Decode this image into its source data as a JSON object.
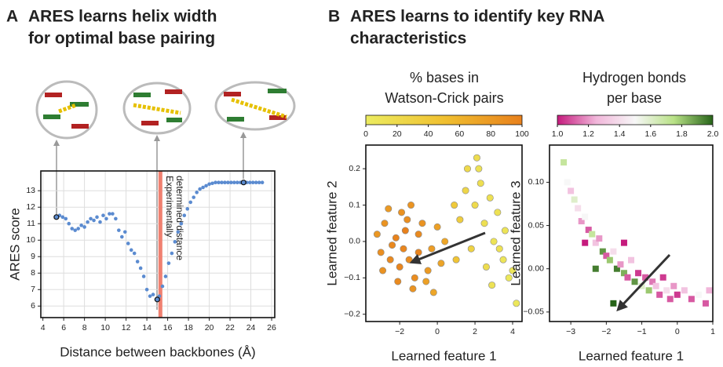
{
  "panels": [
    {
      "label": "A",
      "title_lines": [
        "ARES learns helix width",
        "for optimal base pairing"
      ]
    },
    {
      "label": "B",
      "title_lines": [
        "ARES learns to identify key RNA",
        "characteristics"
      ]
    }
  ],
  "chart_data": [
    {
      "type": "scatter",
      "color": "#5b8bd0",
      "grid": true,
      "ylabel": "ARES score",
      "xlabel": "Distance between backbones (Å)",
      "xlim": [
        3.8,
        26.3
      ],
      "ylim": [
        5.3,
        14.2
      ],
      "xticks": [
        4,
        6,
        8,
        10,
        12,
        14,
        16,
        18,
        20,
        22,
        24,
        26
      ],
      "yticks": [
        6,
        7,
        8,
        9,
        10,
        11,
        12,
        13
      ],
      "x": [
        5.3,
        5.6,
        5.9,
        6.2,
        6.5,
        6.8,
        7.1,
        7.4,
        7.7,
        8.0,
        8.3,
        8.6,
        8.9,
        9.2,
        9.5,
        9.8,
        10.1,
        10.4,
        10.7,
        11.0,
        11.3,
        11.6,
        11.9,
        12.2,
        12.5,
        12.8,
        13.1,
        13.4,
        13.7,
        14.0,
        14.3,
        14.6,
        14.9,
        15.2,
        15.5,
        15.8,
        16.1,
        16.4,
        16.7,
        17.0,
        17.3,
        17.6,
        17.9,
        18.2,
        18.5,
        18.8,
        19.1,
        19.4,
        19.7,
        20.0,
        20.3,
        20.6,
        20.9,
        21.2,
        21.5,
        21.8,
        22.1,
        22.4,
        22.7,
        23.0,
        23.3,
        23.6,
        23.9,
        24.2,
        24.5,
        24.8,
        25.1
      ],
      "y": [
        11.4,
        11.5,
        11.4,
        11.3,
        11.0,
        10.7,
        10.6,
        10.7,
        10.9,
        10.8,
        11.1,
        11.3,
        11.2,
        11.4,
        11.1,
        11.5,
        11.3,
        11.6,
        11.6,
        11.3,
        10.6,
        10.2,
        10.5,
        9.8,
        9.4,
        9.2,
        8.7,
        8.3,
        7.8,
        7.0,
        6.6,
        6.7,
        6.4,
        6.6,
        7.2,
        7.8,
        8.6,
        9.2,
        9.9,
        10.5,
        11.0,
        11.5,
        11.9,
        12.3,
        12.6,
        12.9,
        13.1,
        13.2,
        13.3,
        13.4,
        13.45,
        13.5,
        13.5,
        13.5,
        13.5,
        13.5,
        13.5,
        13.5,
        13.5,
        13.5,
        13.5,
        13.5,
        13.5,
        13.5,
        13.5,
        13.5,
        13.5
      ],
      "marked_points": {
        "x": [
          5.3,
          15.0,
          23.3
        ],
        "y": [
          11.4,
          6.4,
          13.5
        ]
      },
      "reference_x": 15.3,
      "reference_color": "#f08070",
      "reference_annotation": [
        "Experimentally",
        "determined distance"
      ]
    },
    {
      "type": "scatter",
      "marker": "circle",
      "title_lines": [
        "% bases in",
        "Watson-Crick pairs"
      ],
      "xlabel": "Learned feature 1",
      "ylabel": "Learned feature 2",
      "xlim": [
        -3.8,
        4.5
      ],
      "ylim": [
        -0.22,
        0.265
      ],
      "xticks": [
        {
          "value": -2,
          "label": "−2"
        },
        0,
        2,
        4
      ],
      "yticks": [
        {
          "value": -0.2,
          "label": "−0.2"
        },
        {
          "value": -0.1,
          "label": "−0.1"
        },
        {
          "value": 0,
          "label": "0.0"
        },
        0.1,
        0.2
      ],
      "clim": [
        0,
        100
      ],
      "cticks": [
        0,
        20,
        40,
        60,
        80,
        100
      ],
      "colormap": [
        "#ecec60",
        "#f0c030",
        "#e8801c"
      ],
      "x": [
        -1.8,
        -2.2,
        -1.5,
        -1.0,
        -2.8,
        -3.0,
        -0.5,
        -1.2,
        -2.0,
        -0.8,
        -1.6,
        -2.5,
        -3.2,
        -0.3,
        0.2,
        -1.9,
        -2.6,
        -1.3,
        -0.6,
        -2.1,
        0.4,
        -1.0,
        -1.7,
        -2.4,
        0.0,
        -0.2,
        -1.4,
        -2.9,
        2.5,
        2.0,
        3.0,
        1.5,
        2.2,
        3.5,
        3.8,
        4.2,
        2.8,
        1.2,
        1.8,
        3.2,
        2.6,
        0.9,
        3.6,
        2.3,
        1.6,
        4.0,
        2.9,
        1.0,
        3.3,
        2.1
      ],
      "y": [
        -0.02,
        0.01,
        -0.05,
        0.02,
        0.05,
        -0.03,
        -0.08,
        -0.1,
        -0.07,
        0.05,
        0.06,
        -0.05,
        0.02,
        -0.02,
        -0.06,
        0.08,
        0.09,
        -0.13,
        -0.11,
        -0.11,
        0.0,
        -0.03,
        0.03,
        -0.01,
        0.04,
        -0.14,
        0.1,
        -0.08,
        0.05,
        0.1,
        0.0,
        0.14,
        0.2,
        -0.05,
        -0.1,
        -0.17,
        0.12,
        0.06,
        -0.02,
        0.08,
        -0.07,
        0.1,
        0.03,
        0.16,
        0.2,
        -0.08,
        -0.12,
        -0.05,
        -0.02,
        0.23
      ],
      "color_values": [
        95,
        98,
        90,
        92,
        85,
        88,
        80,
        90,
        96,
        85,
        88,
        93,
        82,
        78,
        72,
        86,
        80,
        85,
        75,
        92,
        70,
        97,
        99,
        94,
        75,
        70,
        84,
        86,
        15,
        20,
        10,
        25,
        12,
        8,
        5,
        6,
        14,
        35,
        30,
        12,
        18,
        40,
        9,
        16,
        22,
        7,
        11,
        45,
        13,
        18
      ]
    },
    {
      "type": "scatter",
      "marker": "square",
      "title_lines": [
        "Hydrogen bonds",
        "per base"
      ],
      "xlabel": "Learned feature 1",
      "ylabel": "Learned feature 3",
      "xlim": [
        -3.6,
        1.0
      ],
      "ylim": [
        -0.061,
        0.143
      ],
      "xticks": [
        {
          "value": -3,
          "label": "−3"
        },
        {
          "value": -2,
          "label": "−2"
        },
        {
          "value": -1,
          "label": "−1"
        },
        0,
        1
      ],
      "yticks": [
        {
          "value": -0.05,
          "label": "−0.05"
        },
        {
          "value": 0,
          "label": "0.00"
        },
        0.05,
        {
          "value": 0.1,
          "label": "0.10"
        }
      ],
      "clim": [
        1,
        2
      ],
      "cticks": [
        {
          "value": 1,
          "label": "1.0"
        },
        1.2,
        1.4,
        1.6,
        1.8,
        {
          "value": 2,
          "label": "2.0"
        }
      ],
      "colormap": [
        "#c51b7d",
        "#f1b6da",
        "#f7f7f7",
        "#b8e186",
        "#276419"
      ],
      "x": [
        -3.2,
        -3.1,
        -3.0,
        -2.9,
        -2.8,
        -2.7,
        -2.6,
        -2.5,
        -2.4,
        -2.3,
        -2.2,
        -2.1,
        -2.0,
        -1.9,
        -1.8,
        -1.7,
        -1.6,
        -1.5,
        -1.4,
        -1.3,
        -1.2,
        -1.1,
        -1.0,
        -0.9,
        -0.8,
        -0.7,
        -0.6,
        -0.5,
        -0.4,
        -0.3,
        -0.2,
        -0.1,
        0.0,
        0.2,
        0.4,
        0.6,
        0.8,
        0.9,
        -2.3,
        -1.8,
        -2.6,
        -1.5
      ],
      "y": [
        0.123,
        0.1,
        0.09,
        0.08,
        0.07,
        0.055,
        0.06,
        0.045,
        0.04,
        0.03,
        0.035,
        0.02,
        0.015,
        0.01,
        0.02,
        0.0,
        0.005,
        -0.005,
        -0.01,
        0.01,
        -0.015,
        -0.005,
        -0.02,
        -0.01,
        -0.025,
        -0.015,
        -0.02,
        -0.03,
        -0.01,
        -0.025,
        -0.035,
        -0.02,
        -0.03,
        -0.025,
        -0.035,
        -0.03,
        -0.04,
        -0.025,
        0.0,
        -0.04,
        0.03,
        0.03
      ],
      "color_values": [
        1.7,
        1.5,
        1.3,
        1.6,
        1.4,
        1.2,
        1.5,
        1.1,
        1.7,
        1.3,
        1.2,
        1.9,
        1.1,
        1.8,
        1.4,
        1.95,
        1.2,
        1.85,
        1.1,
        1.3,
        1.9,
        1.05,
        1.6,
        1.1,
        1.8,
        1.15,
        1.3,
        1.1,
        1.05,
        1.4,
        1.1,
        1.2,
        1.05,
        1.3,
        1.1,
        1.5,
        1.1,
        1.25,
        1.95,
        2.0,
        1.0,
        1.0
      ]
    }
  ]
}
